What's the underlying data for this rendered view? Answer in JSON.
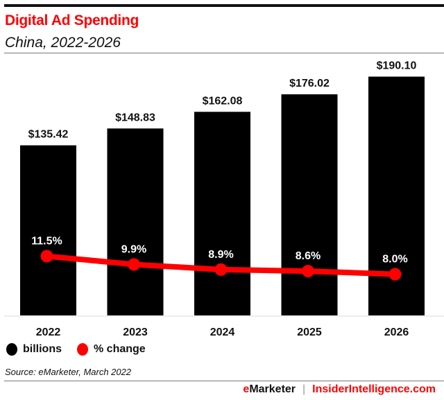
{
  "chart_data": {
    "type": "bar",
    "title": "Digital Ad Spending",
    "subtitle": "China, 2022-2026",
    "categories": [
      "2022",
      "2023",
      "2024",
      "2025",
      "2026"
    ],
    "series": [
      {
        "name": "billions",
        "type": "bar",
        "values": [
          135.42,
          148.83,
          162.08,
          176.02,
          190.1
        ],
        "labels": [
          "$135.42",
          "$148.83",
          "$162.08",
          "$176.02",
          "$190.10"
        ],
        "color": "#000000"
      },
      {
        "name": "% change",
        "type": "line",
        "values": [
          11.5,
          9.9,
          8.9,
          8.6,
          8.0
        ],
        "labels": [
          "11.5%",
          "9.9%",
          "8.9%",
          "8.6%",
          "8.0%"
        ],
        "color": "#ff0000"
      }
    ],
    "legend": "bottom-left",
    "grid": false
  },
  "source": "Source: eMarketer, March 2022",
  "footer": {
    "brand_e": "e",
    "brand_rest": "Marketer",
    "separator": "|",
    "site": "InsiderIntelligence.com"
  }
}
